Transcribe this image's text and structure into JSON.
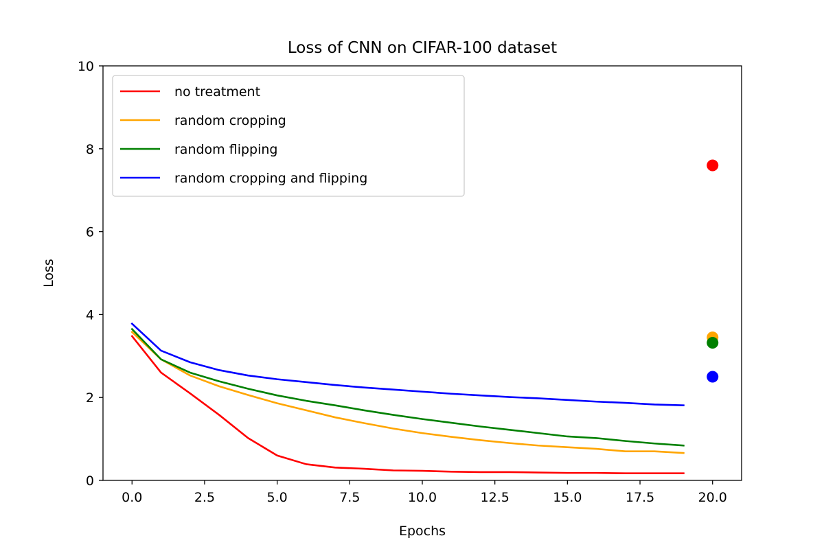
{
  "chart_data": {
    "type": "line",
    "title": "Loss of CNN on CIFAR-100 dataset",
    "xlabel": "Epochs",
    "ylabel": "Loss",
    "xlim": [
      -1.0,
      21.0
    ],
    "ylim": [
      0,
      10
    ],
    "xticks": [
      0.0,
      2.5,
      5.0,
      7.5,
      10.0,
      12.5,
      15.0,
      17.5,
      20.0
    ],
    "xtick_labels": [
      "0.0",
      "2.5",
      "5.0",
      "7.5",
      "10.0",
      "12.5",
      "15.0",
      "17.5",
      "20.0"
    ],
    "yticks": [
      0,
      2,
      4,
      6,
      8,
      10
    ],
    "ytick_labels": [
      "0",
      "2",
      "4",
      "6",
      "8",
      "10"
    ],
    "grid": false,
    "legend_position": "top-left",
    "x": [
      0,
      1,
      2,
      3,
      4,
      5,
      6,
      7,
      8,
      9,
      10,
      11,
      12,
      13,
      14,
      15,
      16,
      17,
      18,
      19
    ],
    "series": [
      {
        "name": "no treatment",
        "color": "#ff0000",
        "values": [
          3.48,
          2.6,
          2.1,
          1.58,
          1.02,
          0.6,
          0.39,
          0.31,
          0.28,
          0.24,
          0.23,
          0.21,
          0.2,
          0.2,
          0.19,
          0.18,
          0.18,
          0.17,
          0.17,
          0.17
        ]
      },
      {
        "name": "random cropping",
        "color": "#ffa500",
        "values": [
          3.58,
          2.92,
          2.53,
          2.27,
          2.06,
          1.86,
          1.69,
          1.52,
          1.38,
          1.25,
          1.14,
          1.05,
          0.97,
          0.9,
          0.84,
          0.8,
          0.76,
          0.7,
          0.7,
          0.66
        ]
      },
      {
        "name": "random flipping",
        "color": "#008000",
        "values": [
          3.65,
          2.92,
          2.6,
          2.39,
          2.21,
          2.05,
          1.92,
          1.81,
          1.69,
          1.58,
          1.48,
          1.39,
          1.3,
          1.22,
          1.14,
          1.06,
          1.02,
          0.95,
          0.89,
          0.84
        ]
      },
      {
        "name": "random cropping and flipping",
        "color": "#0000ff",
        "values": [
          3.78,
          3.13,
          2.85,
          2.66,
          2.53,
          2.44,
          2.37,
          2.3,
          2.24,
          2.19,
          2.14,
          2.09,
          2.05,
          2.01,
          1.98,
          1.94,
          1.9,
          1.87,
          1.83,
          1.81
        ]
      }
    ],
    "points": [
      {
        "series": "no treatment",
        "x": 20,
        "y": 7.6,
        "color": "#ff0000"
      },
      {
        "series": "random cropping",
        "x": 20,
        "y": 3.45,
        "color": "#ffa500"
      },
      {
        "series": "random flipping",
        "x": 20,
        "y": 3.32,
        "color": "#008000"
      },
      {
        "series": "random cropping and flipping",
        "x": 20,
        "y": 2.5,
        "color": "#0000ff"
      }
    ]
  }
}
